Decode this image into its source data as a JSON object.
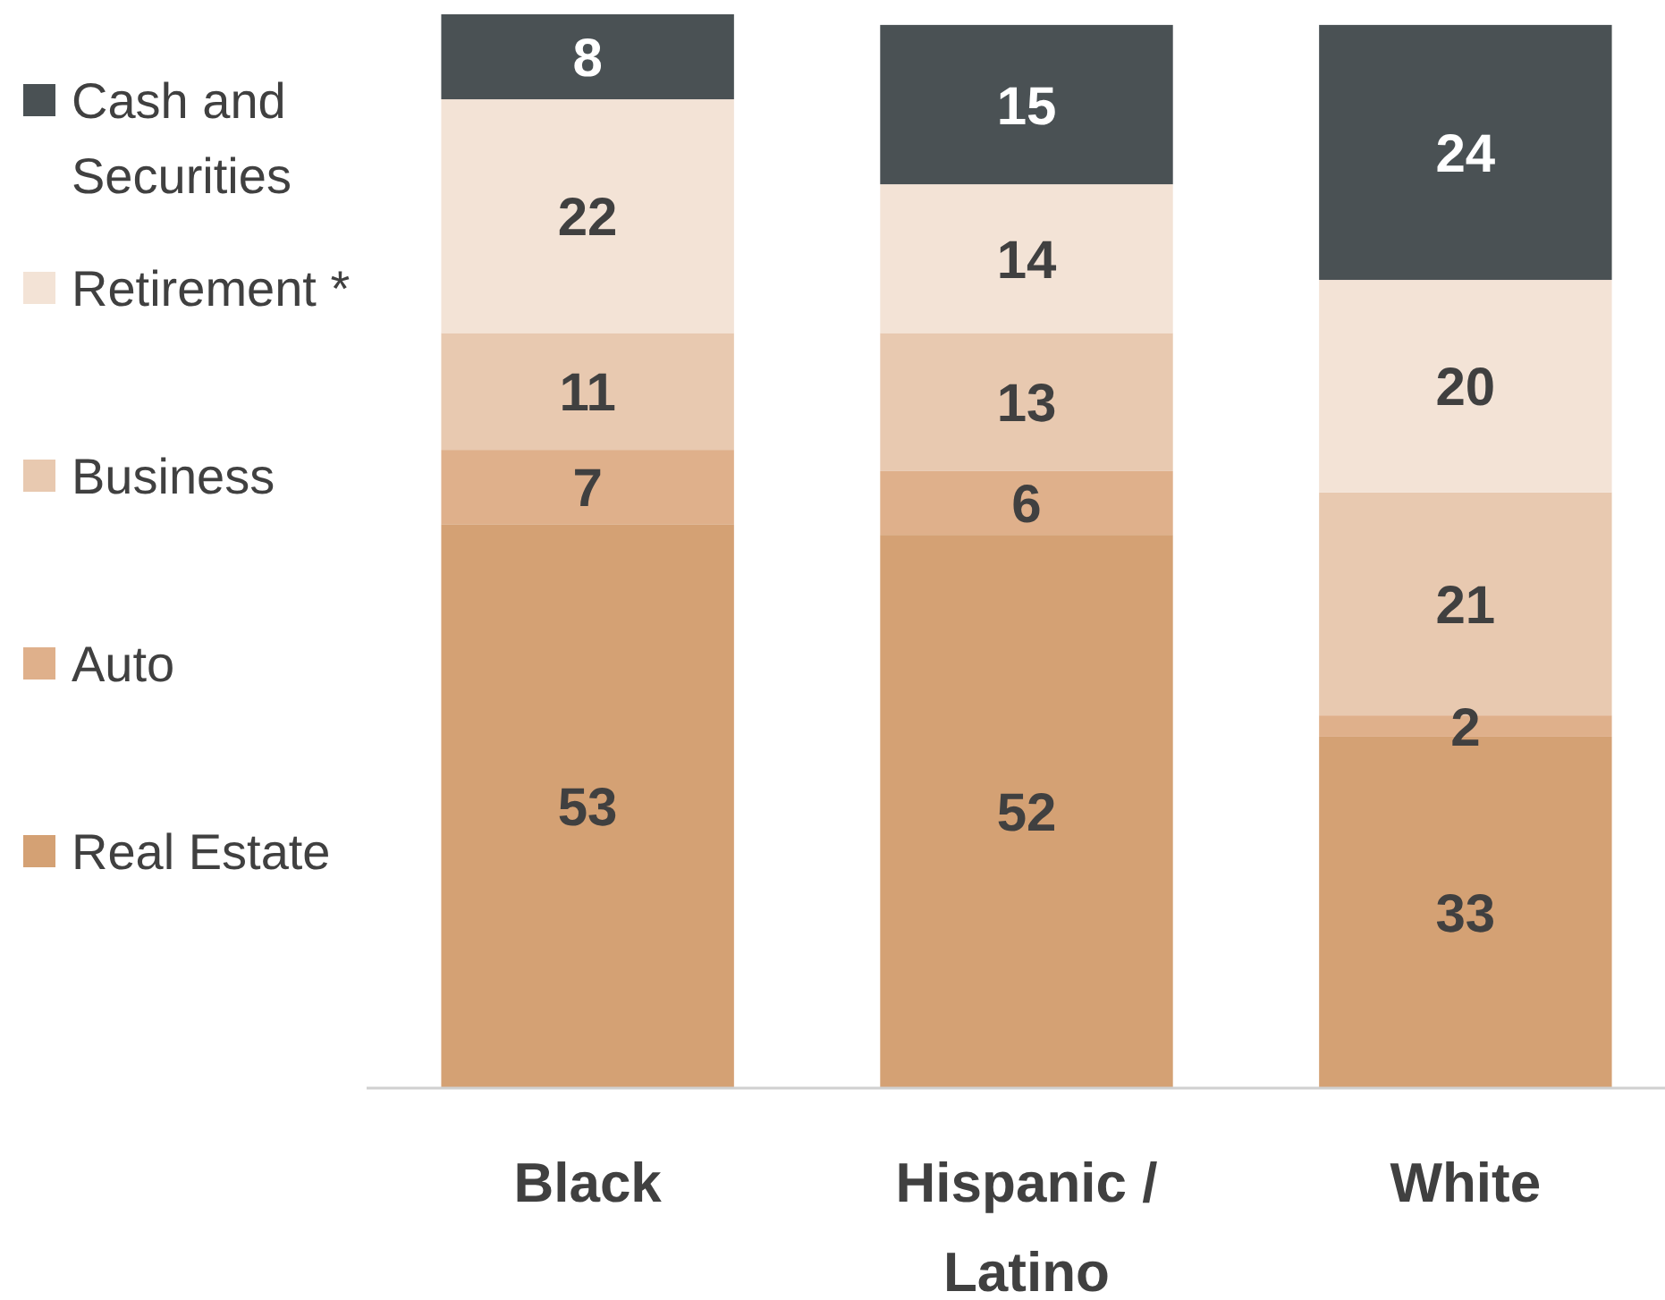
{
  "chart_data": {
    "type": "bar",
    "stacked": true,
    "data_labels": true,
    "legend": "left",
    "categories": [
      "Black",
      "Hispanic / Latino",
      "White"
    ],
    "series": [
      {
        "name": "Real Estate",
        "color": "#d4a174",
        "values": [
          53,
          52,
          33
        ]
      },
      {
        "name": "Auto",
        "color": "#dfb08b",
        "values": [
          7,
          6,
          2
        ]
      },
      {
        "name": "Business",
        "color": "#e8c9b0",
        "values": [
          11,
          13,
          21
        ]
      },
      {
        "name": "Retirement *",
        "color": "#f3e3d6",
        "values": [
          22,
          14,
          20
        ]
      },
      {
        "name": "Cash and Securities",
        "color": "#4a5154",
        "values": [
          8,
          15,
          24
        ]
      }
    ]
  }
}
